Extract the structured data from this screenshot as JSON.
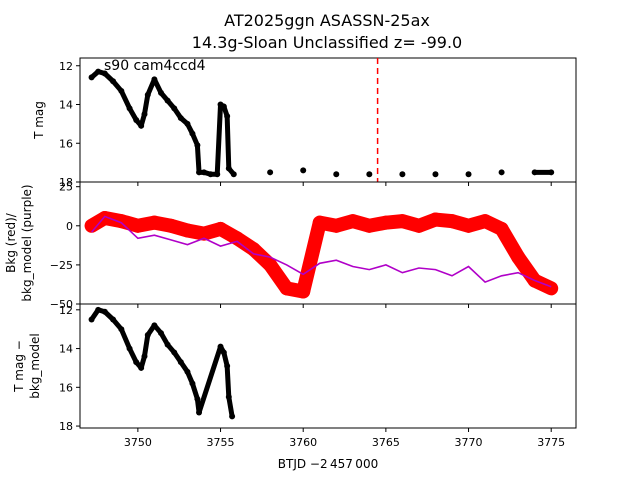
{
  "figure": {
    "title_line1": "AT2025ggn  ASASSN-25ax",
    "title_line2": "14.3g-Sloan Unclassified z= -99.0",
    "xlabel": "BTJD −2 457 000",
    "xlim": [
      3746.5,
      3776.5
    ],
    "xticks": [
      "3750",
      "3755",
      "3760",
      "3765",
      "3770",
      "3775"
    ],
    "xtick_values": [
      3750,
      3755,
      3760,
      3765,
      3770,
      3775
    ]
  },
  "chart_data": [
    {
      "type": "scatter",
      "panel": "top",
      "ylabel": "T mag",
      "annotation": "s90 cam4ccd4",
      "ylim": [
        18.0,
        11.6
      ],
      "inverted_y": true,
      "yticks": [
        "12",
        "14",
        "16",
        "18"
      ],
      "ytick_values": [
        12,
        14,
        16,
        18
      ],
      "marker_color": "#000000",
      "vline": {
        "x": 3764.5,
        "color": "#ff0000",
        "style": "dashed"
      },
      "series": [
        {
          "x": [
            3747.2,
            3747.6,
            3748.0,
            3748.5,
            3749.0,
            3749.5,
            3749.9,
            3750.2,
            3750.4,
            3750.6,
            3751.0,
            3751.4,
            3751.8,
            3752.2,
            3752.6,
            3753.0,
            3753.3,
            3753.6,
            3753.7,
            3754.0,
            3754.4,
            3754.8,
            3755.0,
            3755.2,
            3755.4,
            3755.5,
            3755.8,
            3758.0,
            3760.0,
            3762.0,
            3764.0,
            3766.0,
            3768.0,
            3770.0,
            3772.0,
            3774.0,
            3775.0
          ],
          "y": [
            12.6,
            12.3,
            12.4,
            12.8,
            13.3,
            14.2,
            14.8,
            15.1,
            14.5,
            13.5,
            12.7,
            13.4,
            13.8,
            14.2,
            14.7,
            15.0,
            15.5,
            16.1,
            17.5,
            17.5,
            17.6,
            17.6,
            14.0,
            14.1,
            14.6,
            17.3,
            17.6,
            17.5,
            17.4,
            17.6,
            17.6,
            17.6,
            17.6,
            17.6,
            17.5,
            17.5,
            17.5
          ]
        }
      ]
    },
    {
      "type": "scatter",
      "panel": "middle",
      "ylabel_line1": "Bkg (red)/",
      "ylabel_line2": "bkg_model (purple)",
      "ylim": [
        -50,
        28
      ],
      "yticks": [
        "25",
        "0",
        "−25",
        "−50"
      ],
      "ytick_values": [
        25,
        0,
        -25,
        -50
      ],
      "series": [
        {
          "name": "Bkg",
          "color": "#ff0000",
          "x": [
            3747.2,
            3748.0,
            3749.0,
            3750.0,
            3751.0,
            3752.0,
            3753.0,
            3754.0,
            3755.0,
            3756.0,
            3757.0,
            3758.0,
            3759.0,
            3760.0,
            3761.0,
            3762.0,
            3763.0,
            3764.0,
            3765.0,
            3766.0,
            3767.0,
            3768.0,
            3769.0,
            3770.0,
            3771.0,
            3772.0,
            3773.0,
            3774.0,
            3775.0
          ],
          "y": [
            0,
            5,
            3,
            0,
            2,
            0,
            -3,
            -5,
            -2,
            -8,
            -15,
            -25,
            -40,
            -42,
            2,
            0,
            3,
            0,
            2,
            3,
            0,
            4,
            3,
            0,
            3,
            -2,
            -20,
            -35,
            -40
          ]
        },
        {
          "name": "bkg_model",
          "color": "#b000c8",
          "x": [
            3747.2,
            3748.0,
            3749.0,
            3750.0,
            3751.0,
            3752.0,
            3753.0,
            3754.0,
            3755.0,
            3756.0,
            3757.0,
            3758.0,
            3759.0,
            3760.0,
            3761.0,
            3762.0,
            3763.0,
            3764.0,
            3765.0,
            3766.0,
            3767.0,
            3768.0,
            3769.0,
            3770.0,
            3771.0,
            3772.0,
            3773.0,
            3774.0,
            3775.0
          ],
          "y": [
            -4,
            6,
            2,
            -8,
            -6,
            -9,
            -12,
            -8,
            -13,
            -10,
            -18,
            -20,
            -25,
            -31,
            -24,
            -22,
            -26,
            -28,
            -25,
            -30,
            -27,
            -28,
            -32,
            -26,
            -36,
            -32,
            -30,
            -35,
            -39
          ]
        }
      ]
    },
    {
      "type": "scatter",
      "panel": "bottom",
      "ylabel_line1": "T mag −",
      "ylabel_line2": "bkg_model",
      "ylim": [
        18.1,
        11.7
      ],
      "inverted_y": true,
      "yticks": [
        "12",
        "14",
        "16",
        "18"
      ],
      "ytick_values": [
        12,
        14,
        16,
        18
      ],
      "marker_color": "#000000",
      "series": [
        {
          "x": [
            3747.2,
            3747.6,
            3748.0,
            3748.5,
            3749.0,
            3749.5,
            3749.9,
            3750.2,
            3750.4,
            3750.6,
            3751.0,
            3751.4,
            3751.8,
            3752.2,
            3752.6,
            3753.0,
            3753.3,
            3753.6,
            3753.7,
            3755.0,
            3755.2,
            3755.4,
            3755.5,
            3755.7
          ],
          "y": [
            12.5,
            12.0,
            12.1,
            12.5,
            13.0,
            14.0,
            14.7,
            15.0,
            14.4,
            13.3,
            12.8,
            13.2,
            13.8,
            14.2,
            14.7,
            15.2,
            15.8,
            16.6,
            17.3,
            13.9,
            14.2,
            14.9,
            16.5,
            17.5
          ]
        }
      ]
    }
  ]
}
